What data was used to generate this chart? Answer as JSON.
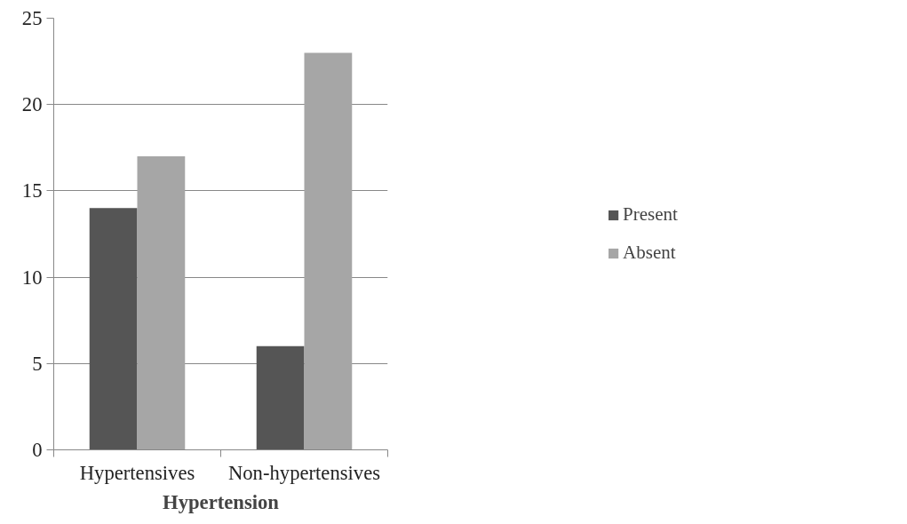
{
  "chart_data": {
    "type": "bar",
    "xlabel": "Hypertension",
    "categories": [
      "Hypertensives",
      "Non-hypertensives"
    ],
    "series": [
      {
        "name": "Present",
        "color": "#555555",
        "values": [
          14,
          6
        ]
      },
      {
        "name": "Absent",
        "color": "#a6a6a6",
        "values": [
          17,
          23
        ]
      }
    ],
    "ylim": [
      0,
      25
    ],
    "yticks": [
      0,
      5,
      10,
      15,
      20,
      25
    ],
    "grid": "y",
    "legend": "right"
  }
}
